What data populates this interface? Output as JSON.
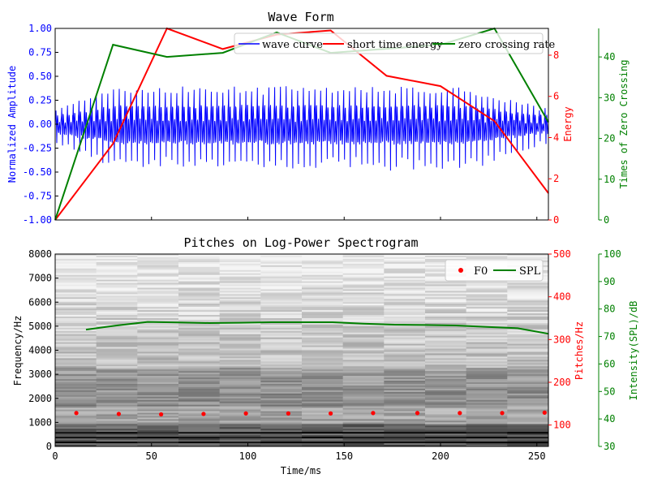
{
  "chart_data": [
    {
      "type": "line",
      "title": "Wave Form",
      "ylabel_left": "Normalized Amplitude",
      "ylabel_right1": "Energy",
      "ylabel_right2": "Times of Zero Crossing",
      "xlim": [
        0,
        256
      ],
      "ylim_left": [
        -1.0,
        1.0
      ],
      "ylim_right1": [
        0,
        9.3
      ],
      "ylim_right2": [
        0,
        47
      ],
      "left_ticks": [
        "1.00",
        "0.75",
        "0.50",
        "0.25",
        "0.00",
        "-0.25",
        "-0.50",
        "-0.75",
        "-1.00"
      ],
      "left_tick_values": [
        1.0,
        0.75,
        0.5,
        0.25,
        0.0,
        -0.25,
        -0.5,
        -0.75,
        -1.0
      ],
      "right1_ticks": [
        "8",
        "6",
        "4",
        "2",
        "0"
      ],
      "right1_tick_values": [
        8,
        6,
        4,
        2,
        0
      ],
      "right2_ticks": [
        "40",
        "30",
        "20",
        "10",
        "0"
      ],
      "right2_tick_values": [
        40,
        30,
        20,
        10,
        0
      ],
      "legend": {
        "placement": "top-right",
        "entries": [
          "wave curve",
          "short time energy",
          "zero crossing rate"
        ]
      },
      "series": [
        {
          "name": "short time energy",
          "color": "#ff0000",
          "x": [
            0,
            30,
            58,
            87,
            115,
            143,
            172,
            200,
            228,
            256
          ],
          "y": [
            0.0,
            3.7,
            9.3,
            8.3,
            9.0,
            9.2,
            7.0,
            6.5,
            4.8,
            1.3
          ]
        },
        {
          "name": "zero crossing rate",
          "color": "#008000",
          "x": [
            0,
            30,
            58,
            87,
            115,
            143,
            172,
            200,
            228,
            256
          ],
          "y": [
            0,
            43,
            40,
            41,
            46,
            41,
            42,
            43,
            47,
            24
          ]
        }
      ]
    },
    {
      "type": "heatmap",
      "title": "Pitches on Log-Power Spectrogram",
      "xlabel": "Time/ms",
      "ylabel_left": "Frequency/Hz",
      "ylabel_right1": "Pitches/Hz",
      "ylabel_right2": "Intensity(SPL)/dB",
      "xlim": [
        0,
        256
      ],
      "ylim_left": [
        0,
        8000
      ],
      "ylim_right1": [
        50,
        500
      ],
      "ylim_right2": [
        30,
        100
      ],
      "x_ticks": [
        "0",
        "50",
        "100",
        "150",
        "200",
        "250"
      ],
      "x_tick_values": [
        0,
        50,
        100,
        150,
        200,
        250
      ],
      "left_ticks": [
        "8000",
        "7000",
        "6000",
        "5000",
        "4000",
        "3000",
        "2000",
        "1000",
        "0"
      ],
      "left_tick_values": [
        8000,
        7000,
        6000,
        5000,
        4000,
        3000,
        2000,
        1000,
        0
      ],
      "right1_ticks": [
        "500",
        "400",
        "300",
        "200",
        "100"
      ],
      "right1_tick_values": [
        500,
        400,
        300,
        200,
        100
      ],
      "right2_ticks": [
        "100",
        "90",
        "80",
        "70",
        "60",
        "50",
        "40",
        "30"
      ],
      "right2_tick_values": [
        100,
        90,
        80,
        70,
        60,
        50,
        40,
        30
      ],
      "legend": {
        "placement": "top-right",
        "entries": [
          "F0",
          "SPL"
        ]
      },
      "series": [
        {
          "name": "F0",
          "color": "#ff0000",
          "x": [
            11,
            33,
            55,
            77,
            99,
            121,
            143,
            165,
            188,
            210,
            232,
            254
          ],
          "y": [
            128,
            126,
            125,
            126,
            127,
            127,
            127,
            128,
            128,
            128,
            128,
            129
          ]
        },
        {
          "name": "SPL",
          "color": "#008000",
          "x": [
            16,
            32,
            48,
            64,
            80,
            96,
            112,
            128,
            144,
            160,
            176,
            192,
            208,
            224,
            240,
            256
          ],
          "y": [
            72.5,
            74.0,
            75.3,
            75.1,
            74.9,
            75.0,
            75.2,
            75.2,
            75.2,
            74.7,
            74.3,
            74.2,
            74.0,
            73.5,
            73.0,
            71.0
          ]
        }
      ]
    }
  ],
  "colors": {
    "wave": "#0000ff",
    "energy": "#ff0000",
    "zcr": "#008000"
  }
}
